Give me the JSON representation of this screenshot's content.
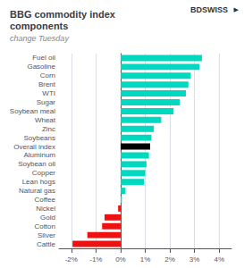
{
  "chart_data": {
    "type": "bar",
    "orientation": "horizontal",
    "title": "BBG commodity index\ncomponents",
    "subtitle": "change Tuesday",
    "annotations": [
      "BDSWISS",
      "▶"
    ],
    "categories": [
      "Fuel oil",
      "Gasoline",
      "Corn",
      "Brent",
      "WTI",
      "Sugar",
      "Soybean meal",
      "Wheat",
      "Zinc",
      "Soybeans",
      "Overall index",
      "Aluminum",
      "Soybean oil",
      "Copper",
      "Lean hogs",
      "Natural gas",
      "Coffee",
      "Nickel",
      "Gold",
      "Cotton",
      "Silver",
      "Cattle"
    ],
    "values": [
      3.3,
      3.2,
      2.85,
      2.75,
      2.65,
      2.4,
      2.15,
      1.65,
      1.35,
      1.25,
      1.2,
      1.15,
      1.05,
      1.0,
      0.95,
      0.2,
      0.05,
      -0.1,
      -0.65,
      -0.75,
      -1.35,
      -1.95
    ],
    "colors": [
      "#00d9c0",
      "#00d9c0",
      "#00d9c0",
      "#00d9c0",
      "#00d9c0",
      "#00d9c0",
      "#00d9c0",
      "#00d9c0",
      "#00d9c0",
      "#00d9c0",
      "#000000",
      "#00d9c0",
      "#00d9c0",
      "#00d9c0",
      "#00d9c0",
      "#00d9c0",
      "#00d9c0",
      "#ee1111",
      "#ee1111",
      "#ee1111",
      "#ee1111",
      "#ee1111"
    ],
    "xlim": [
      -2.5,
      4.5
    ],
    "xticks": [
      {
        "value": -2,
        "label": "-2%"
      },
      {
        "value": -1,
        "label": "-1%"
      },
      {
        "value": 0,
        "label": "0%"
      },
      {
        "value": 1,
        "label": "1%"
      },
      {
        "value": 2,
        "label": "2%"
      },
      {
        "value": 3,
        "label": "3%"
      },
      {
        "value": 4,
        "label": "4%"
      }
    ],
    "grid": true
  }
}
